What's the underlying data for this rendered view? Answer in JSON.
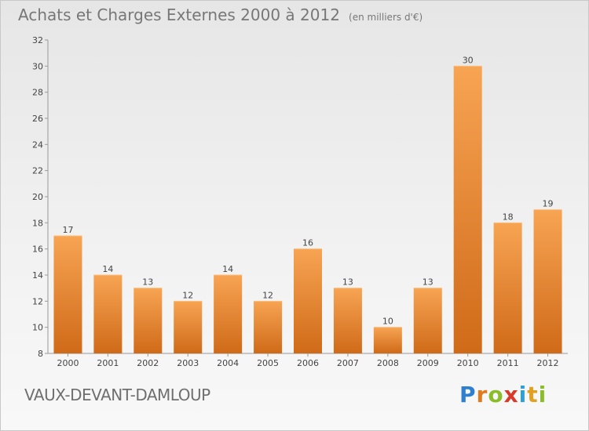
{
  "header": {
    "title": "Achats et Charges Externes 2000 à 2012",
    "unit": "(en milliers d'€)"
  },
  "footer": {
    "place": "VAUX-DEVANT-DAMLOUP",
    "logo": "Proxiti"
  },
  "chart_data": {
    "type": "bar",
    "title": "Achats et Charges Externes 2000 à 2012",
    "subtitle": "(en milliers d'€)",
    "categories": [
      "2000",
      "2001",
      "2002",
      "2003",
      "2004",
      "2005",
      "2006",
      "2007",
      "2008",
      "2009",
      "2010",
      "2011",
      "2012"
    ],
    "values": [
      17,
      14,
      13,
      12,
      14,
      12,
      16,
      13,
      10,
      13,
      30,
      18,
      19
    ],
    "ylim": [
      8,
      32
    ],
    "yticks": [
      8,
      10,
      12,
      14,
      16,
      18,
      20,
      22,
      24,
      26,
      28,
      30,
      32
    ],
    "grid": false,
    "colors": {
      "bar_light": "#f7a453",
      "bar_dark": "#cf6a18",
      "axis": "#999999",
      "text": "#444444"
    }
  }
}
